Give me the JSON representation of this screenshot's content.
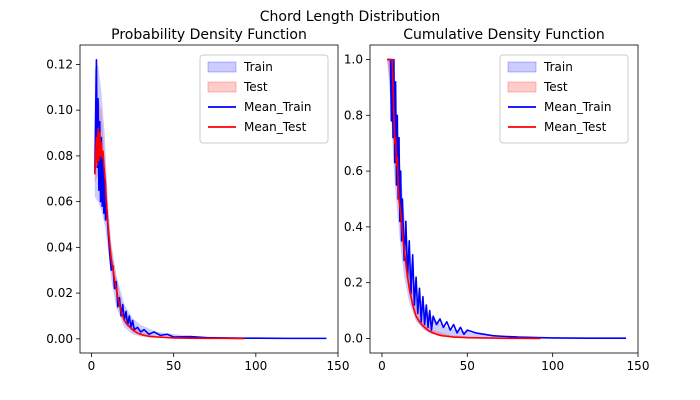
{
  "figure": {
    "suptitle": "Chord Length Distribution"
  },
  "colors": {
    "train_line": "#0000ff",
    "test_line": "#ff0000",
    "train_band": "#0000ff",
    "test_band": "#ff0000"
  },
  "chart_data": [
    {
      "type": "line",
      "title": "Probability Density Function",
      "xlabel": "",
      "ylabel": "",
      "xlim": [
        -7,
        150
      ],
      "ylim": [
        -0.0062,
        0.1285
      ],
      "xticks": [
        0,
        50,
        100,
        150
      ],
      "yticks": [
        0.0,
        0.02,
        0.04,
        0.06,
        0.08,
        0.1,
        0.12
      ],
      "ytick_format": 2,
      "grid": false,
      "legend": {
        "placement": "top-right",
        "entries": [
          "Train",
          "Test",
          "Mean_Train",
          "Mean_Test"
        ]
      },
      "series": [
        {
          "name": "Mean_Train",
          "x": [
            2,
            3,
            3.5,
            4,
            4.5,
            5,
            5.5,
            6,
            6.5,
            7,
            7.5,
            8,
            8.5,
            9,
            10,
            11,
            12,
            13,
            14,
            15,
            16,
            17,
            18,
            19,
            20,
            21,
            22,
            23,
            24,
            25,
            26,
            28,
            30,
            32,
            35,
            38,
            42,
            46,
            50,
            60,
            70,
            80,
            93,
            100,
            120,
            143
          ],
          "y": [
            0.072,
            0.122,
            0.075,
            0.105,
            0.065,
            0.095,
            0.06,
            0.088,
            0.058,
            0.08,
            0.055,
            0.07,
            0.052,
            0.06,
            0.048,
            0.038,
            0.03,
            0.032,
            0.022,
            0.025,
            0.014,
            0.018,
            0.01,
            0.015,
            0.008,
            0.012,
            0.006,
            0.01,
            0.005,
            0.008,
            0.004,
            0.005,
            0.003,
            0.004,
            0.002,
            0.003,
            0.0015,
            0.002,
            0.0008,
            0.001,
            0.0005,
            0.0004,
            0.0003,
            0.0003,
            0.0002,
            0.0002
          ]
        },
        {
          "name": "Mean_Test",
          "x": [
            2,
            3,
            3.5,
            4,
            4.5,
            5,
            5.5,
            6,
            6.5,
            7,
            7.5,
            8,
            8.5,
            9,
            10,
            11,
            12,
            14,
            16,
            18,
            20,
            22,
            25,
            28,
            32,
            36,
            40,
            50,
            60,
            70,
            80,
            93
          ],
          "y": [
            0.072,
            0.088,
            0.076,
            0.092,
            0.078,
            0.09,
            0.08,
            0.086,
            0.079,
            0.082,
            0.076,
            0.072,
            0.068,
            0.06,
            0.05,
            0.042,
            0.035,
            0.026,
            0.018,
            0.012,
            0.008,
            0.006,
            0.004,
            0.0025,
            0.0015,
            0.001,
            0.0008,
            0.0004,
            0.0003,
            0.0002,
            0.0002,
            0.0001
          ]
        }
      ],
      "bands": [
        {
          "name": "Train",
          "x": [
            2,
            4,
            6,
            8,
            10,
            12,
            15,
            20,
            25,
            30,
            40,
            60,
            93
          ],
          "low": [
            0.062,
            0.06,
            0.056,
            0.05,
            0.04,
            0.026,
            0.014,
            0.005,
            0.002,
            0.001,
            0.0004,
            0.0001,
            0.0
          ],
          "high": [
            0.118,
            0.12,
            0.108,
            0.09,
            0.06,
            0.042,
            0.028,
            0.015,
            0.009,
            0.006,
            0.003,
            0.0012,
            0.0005
          ]
        },
        {
          "name": "Test",
          "x": [
            2,
            4,
            6,
            8,
            10,
            12,
            15,
            20,
            25,
            30,
            40,
            60,
            93
          ],
          "low": [
            0.068,
            0.072,
            0.074,
            0.066,
            0.046,
            0.032,
            0.02,
            0.007,
            0.003,
            0.0015,
            0.0005,
            0.0002,
            0.0
          ],
          "high": [
            0.078,
            0.104,
            0.1,
            0.08,
            0.056,
            0.04,
            0.028,
            0.01,
            0.006,
            0.003,
            0.0012,
            0.0004,
            0.0002
          ]
        }
      ]
    },
    {
      "type": "line",
      "title": "Cumulative Density Function",
      "xlabel": "",
      "ylabel": "",
      "xlim": [
        -7,
        150
      ],
      "ylim": [
        -0.052,
        1.052
      ],
      "xticks": [
        0,
        50,
        100,
        150
      ],
      "yticks": [
        0.0,
        0.2,
        0.4,
        0.6,
        0.8,
        1.0
      ],
      "ytick_format": 1,
      "grid": false,
      "legend": {
        "placement": "top-right",
        "entries": [
          "Train",
          "Test",
          "Mean_Train",
          "Mean_Test"
        ]
      },
      "series": [
        {
          "name": "Mean_Train",
          "x": [
            3,
            5,
            5.5,
            6,
            6.5,
            7,
            7.5,
            8,
            8.5,
            9,
            9.5,
            10,
            10.5,
            11,
            11.5,
            12,
            13,
            14,
            15,
            16,
            17,
            18,
            19,
            20,
            21,
            22,
            23,
            24,
            25,
            26,
            27,
            28,
            29,
            30,
            32,
            34,
            36,
            38,
            40,
            42,
            44,
            46,
            48,
            50,
            55,
            60,
            65,
            70,
            80,
            93,
            100,
            120,
            143
          ],
          "y": [
            1.0,
            1.0,
            0.78,
            1.0,
            0.72,
            1.0,
            0.63,
            0.92,
            0.55,
            0.8,
            0.5,
            0.72,
            0.42,
            0.6,
            0.35,
            0.5,
            0.28,
            0.42,
            0.22,
            0.35,
            0.16,
            0.3,
            0.12,
            0.22,
            0.09,
            0.18,
            0.06,
            0.15,
            0.05,
            0.12,
            0.04,
            0.1,
            0.03,
            0.08,
            0.05,
            0.07,
            0.04,
            0.06,
            0.03,
            0.05,
            0.02,
            0.04,
            0.015,
            0.03,
            0.02,
            0.015,
            0.01,
            0.008,
            0.005,
            0.003,
            0.002,
            0.001,
            0.001
          ]
        },
        {
          "name": "Mean_Test",
          "x": [
            3,
            5,
            6,
            7,
            7.5,
            8,
            8.5,
            9,
            9.5,
            10,
            11,
            12,
            13,
            14,
            15,
            16,
            17,
            18,
            19,
            20,
            22,
            24,
            26,
            28,
            30,
            32,
            35,
            38,
            42,
            46,
            50,
            60,
            70,
            80,
            93
          ],
          "y": [
            1.0,
            1.0,
            1.0,
            0.8,
            0.7,
            0.72,
            0.62,
            0.65,
            0.55,
            0.5,
            0.45,
            0.38,
            0.32,
            0.27,
            0.22,
            0.18,
            0.15,
            0.12,
            0.1,
            0.08,
            0.06,
            0.045,
            0.035,
            0.025,
            0.02,
            0.015,
            0.01,
            0.008,
            0.005,
            0.004,
            0.003,
            0.002,
            0.001,
            0.0005,
            0.0
          ]
        }
      ],
      "bands": [
        {
          "name": "Train",
          "x": [
            3,
            5,
            7,
            9,
            11,
            13,
            16,
            20,
            25,
            30,
            40,
            60,
            93
          ],
          "low": [
            1.0,
            0.85,
            0.6,
            0.45,
            0.32,
            0.22,
            0.13,
            0.06,
            0.03,
            0.015,
            0.005,
            0.001,
            0.0
          ],
          "high": [
            1.0,
            1.0,
            0.95,
            0.75,
            0.6,
            0.45,
            0.3,
            0.18,
            0.11,
            0.07,
            0.035,
            0.012,
            0.004
          ]
        },
        {
          "name": "Test",
          "x": [
            3,
            5,
            7,
            9,
            11,
            13,
            16,
            20,
            25,
            30,
            40,
            60,
            93
          ],
          "low": [
            1.0,
            0.9,
            0.7,
            0.52,
            0.38,
            0.27,
            0.16,
            0.07,
            0.03,
            0.015,
            0.005,
            0.001,
            0.0
          ],
          "high": [
            1.0,
            1.0,
            0.85,
            0.66,
            0.5,
            0.37,
            0.24,
            0.12,
            0.06,
            0.03,
            0.012,
            0.004,
            0.001
          ]
        }
      ]
    }
  ]
}
